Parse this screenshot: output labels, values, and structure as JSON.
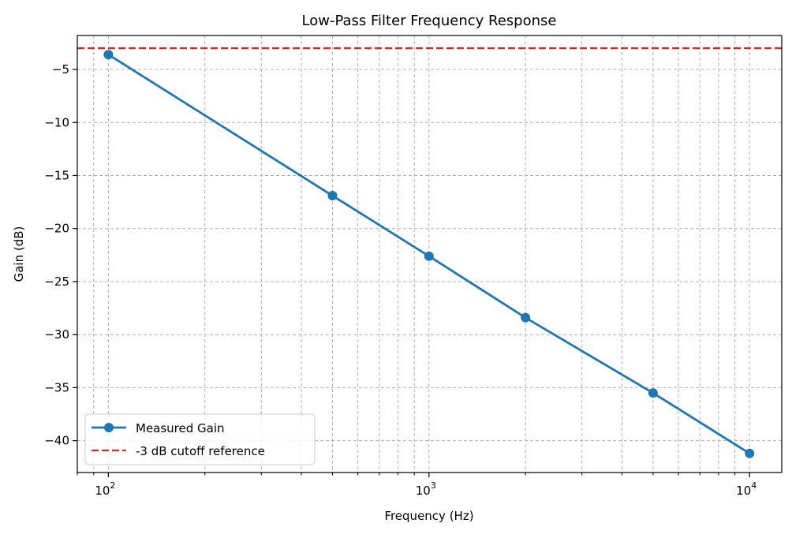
{
  "chart_data": {
    "type": "line",
    "title": "Low-Pass Filter Frequency Response",
    "xlabel": "Frequency (Hz)",
    "ylabel": "Gain (dB)",
    "xscale": "log",
    "xlim": [
      80,
      12600
    ],
    "ylim": [
      -43.0,
      -1.8
    ],
    "grid": true,
    "legend_position": "lower-left",
    "x_ticks": [
      {
        "value": 100,
        "base": "10",
        "exp": "2"
      },
      {
        "value": 1000,
        "base": "10",
        "exp": "3"
      },
      {
        "value": 10000,
        "base": "10",
        "exp": "4"
      }
    ],
    "y_ticks": [
      {
        "value": -5,
        "label": "−5"
      },
      {
        "value": -10,
        "label": "−10"
      },
      {
        "value": -15,
        "label": "−15"
      },
      {
        "value": -20,
        "label": "−20"
      },
      {
        "value": -25,
        "label": "−25"
      },
      {
        "value": -30,
        "label": "−30"
      },
      {
        "value": -35,
        "label": "−35"
      },
      {
        "value": -40,
        "label": "−40"
      }
    ],
    "series": [
      {
        "name": "Measured Gain",
        "color": "#1f77b4",
        "style": "solid",
        "marker": "circle",
        "x": [
          100,
          500,
          1000,
          2000,
          5000,
          10000
        ],
        "y": [
          -3.6,
          -16.9,
          -22.6,
          -28.4,
          -35.5,
          -41.2
        ]
      }
    ],
    "reference_lines": [
      {
        "name": "-3 dB cutoff reference",
        "color": "#d62728",
        "style": "dashed",
        "y": -3
      }
    ]
  }
}
